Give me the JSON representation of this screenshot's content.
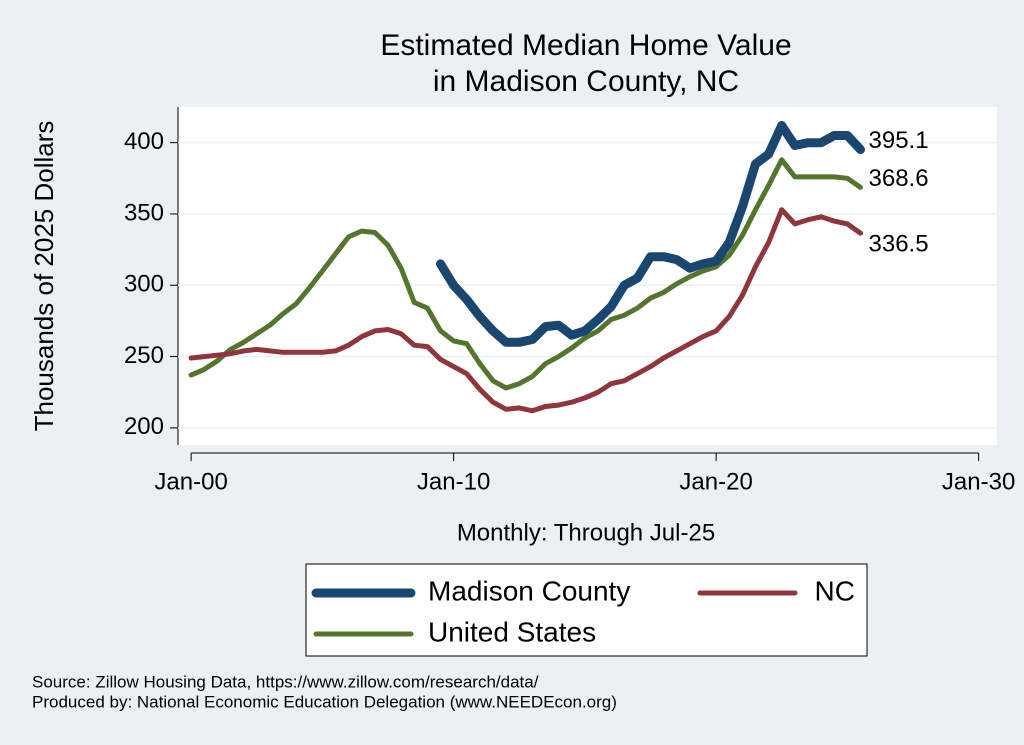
{
  "chart_data": {
    "type": "line",
    "title": [
      "Estimated Median Home Value",
      "in Madison County, NC"
    ],
    "ylabel": "Thousands of 2025 Dollars",
    "xlabel": "Monthly: Through Jul-25",
    "source": [
      "Source: Zillow Housing Data, https://www.zillow.com/research/data/",
      "Produced by: National Economic Education Delegation (www.NEEDEcon.org)"
    ],
    "x": [
      2000,
      2000.5,
      2001,
      2001.5,
      2002,
      2002.5,
      2003,
      2003.5,
      2004,
      2004.5,
      2005,
      2005.5,
      2006,
      2006.5,
      2007,
      2007.5,
      2008,
      2008.5,
      2009,
      2009.5,
      2010,
      2010.5,
      2011,
      2011.5,
      2012,
      2012.5,
      2013,
      2013.5,
      2014,
      2014.5,
      2015,
      2015.5,
      2016,
      2016.5,
      2017,
      2017.5,
      2018,
      2018.5,
      2019,
      2019.5,
      2020,
      2020.5,
      2021,
      2021.5,
      2022,
      2022.5,
      2023,
      2023.5,
      2024,
      2024.5,
      2025,
      2025.5
    ],
    "series": [
      {
        "name": "Madison County",
        "color": "#1a476f",
        "width": 9,
        "values": [
          null,
          null,
          null,
          null,
          null,
          null,
          null,
          null,
          null,
          null,
          null,
          null,
          null,
          null,
          null,
          null,
          null,
          null,
          null,
          315,
          300,
          290,
          278,
          268,
          260,
          260,
          262,
          271,
          272,
          265,
          268,
          276,
          285,
          300,
          305,
          320,
          320,
          318,
          312,
          315,
          317,
          330,
          355,
          385,
          392,
          412,
          398,
          400,
          400,
          405,
          405,
          395.1
        ]
      },
      {
        "name": "NC",
        "color": "#90353b",
        "width": 5,
        "values": [
          249,
          250,
          251,
          252,
          254,
          255,
          254,
          253,
          253,
          253,
          253,
          254,
          258,
          264,
          268,
          269,
          266,
          258,
          257,
          248,
          243,
          238,
          227,
          218,
          213,
          214,
          212,
          215,
          216,
          218,
          221,
          225,
          231,
          233,
          238,
          243,
          249,
          254,
          259,
          264,
          268,
          278,
          293,
          313,
          330,
          353,
          343,
          346,
          348,
          345,
          343,
          336.5
        ]
      },
      {
        "name": "United States",
        "color": "#55752f",
        "width": 5,
        "values": [
          237,
          241,
          247,
          255,
          260,
          266,
          272,
          280,
          287,
          298,
          310,
          322,
          334,
          338,
          337,
          328,
          312,
          288,
          284,
          268,
          261,
          259,
          245,
          233,
          228,
          231,
          236,
          245,
          250,
          256,
          263,
          268,
          276,
          279,
          284,
          291,
          295,
          301,
          306,
          310,
          313,
          321,
          335,
          353,
          370,
          388,
          376,
          376,
          376,
          376,
          375,
          368.6
        ]
      }
    ],
    "xlim": [
      1999.5,
      2030.7
    ],
    "xticks": [
      {
        "value": 2000,
        "label": "Jan-00"
      },
      {
        "value": 2010,
        "label": "Jan-10"
      },
      {
        "value": 2020,
        "label": "Jan-20"
      },
      {
        "value": 2030,
        "label": "Jan-30"
      }
    ],
    "ylim": [
      188,
      425
    ],
    "yticks": [
      200,
      250,
      300,
      350,
      400
    ],
    "grid": true
  }
}
